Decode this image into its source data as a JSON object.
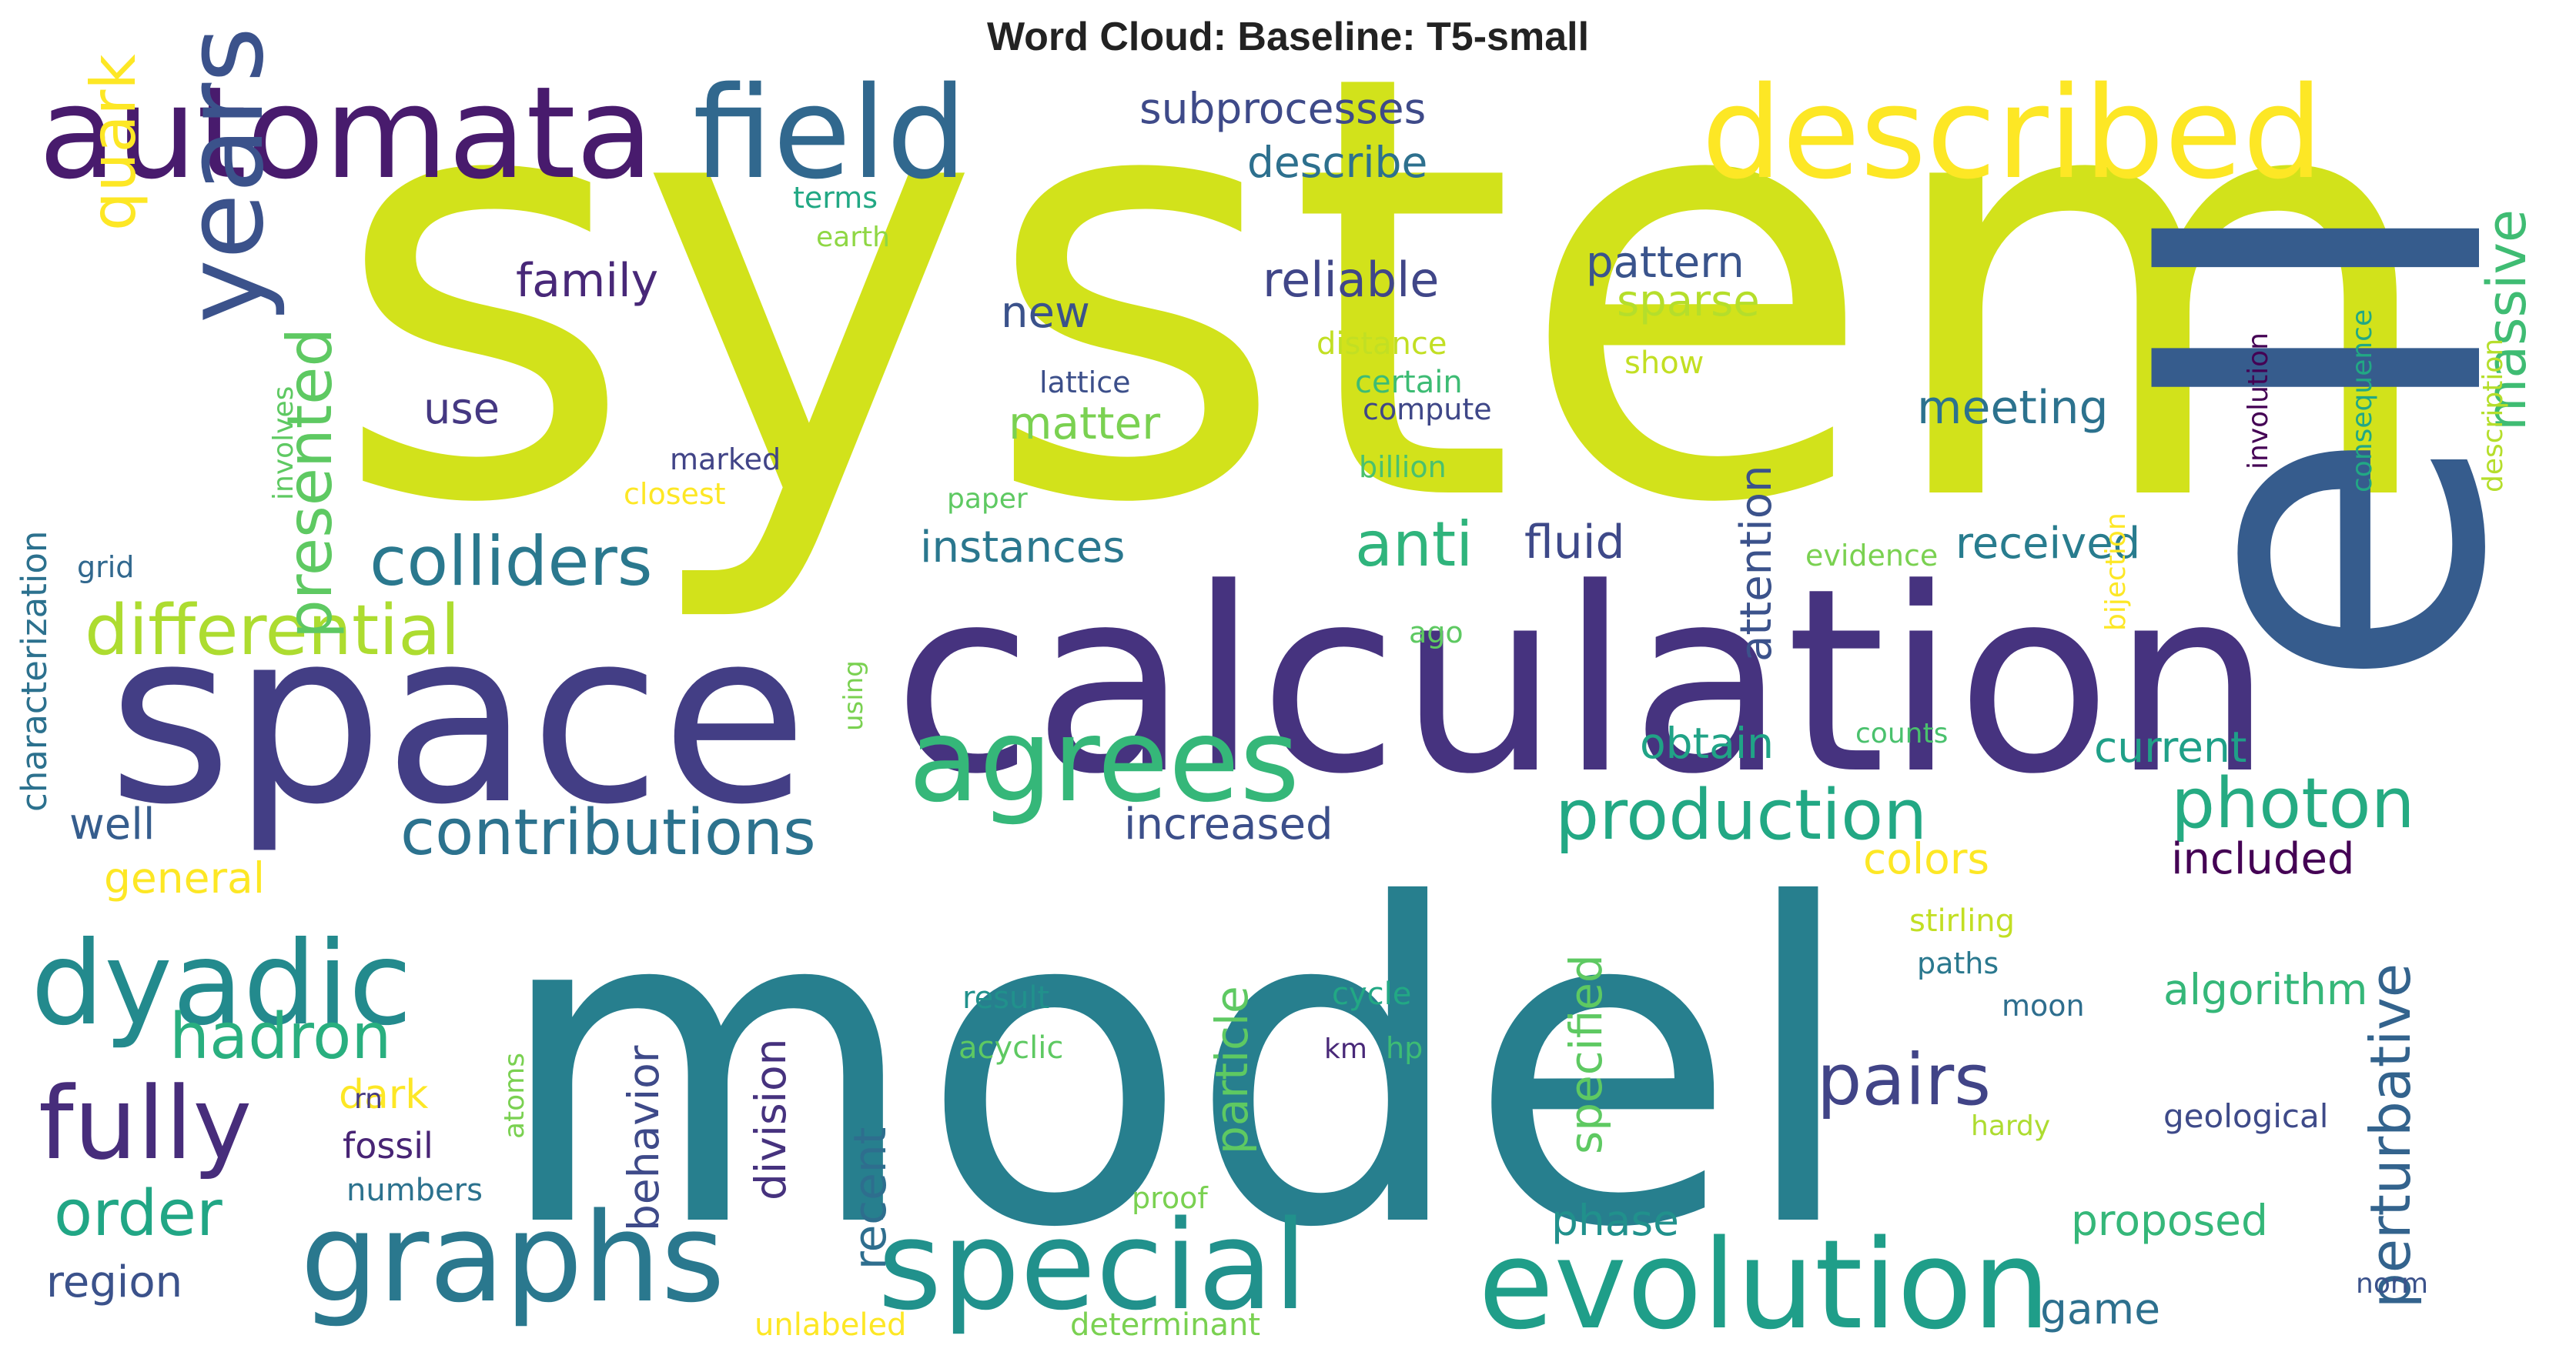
{
  "title": "Word Cloud: Baseline: T5-small",
  "words": [
    {
      "text": "system",
      "color": "#d2e21b"
    },
    {
      "text": "model",
      "color": "#277f8e"
    },
    {
      "text": "calculation",
      "color": "#46337f"
    },
    {
      "text": "space",
      "color": "#433e85"
    },
    {
      "text": "automata",
      "color": "#481b6d"
    },
    {
      "text": "field",
      "color": "#31688e"
    },
    {
      "text": "described",
      "color": "#fde725"
    },
    {
      "text": "ell",
      "color": "#365c8d"
    },
    {
      "text": "years",
      "color": "#3b528b"
    },
    {
      "text": "agrees",
      "color": "#35b779"
    },
    {
      "text": "dyadic",
      "color": "#238a8d"
    },
    {
      "text": "graphs",
      "color": "#2a788e"
    },
    {
      "text": "special",
      "color": "#21918c"
    },
    {
      "text": "evolution",
      "color": "#1f9e89"
    },
    {
      "text": "fully",
      "color": "#472d7b"
    },
    {
      "text": "production",
      "color": "#22a884"
    },
    {
      "text": "photon",
      "color": "#25ab82"
    },
    {
      "text": "contributions",
      "color": "#2c728e"
    },
    {
      "text": "colliders",
      "color": "#2a788e"
    },
    {
      "text": "differential",
      "color": "#addc30"
    },
    {
      "text": "presented",
      "color": "#5ec962"
    },
    {
      "text": "quark",
      "color": "#fde725"
    },
    {
      "text": "massive",
      "color": "#3fbc73"
    },
    {
      "text": "perturbative",
      "color": "#33638d"
    },
    {
      "text": "hadron",
      "color": "#29af7f"
    },
    {
      "text": "pairs",
      "color": "#414487"
    },
    {
      "text": "order",
      "color": "#21a685"
    },
    {
      "text": "anti",
      "color": "#2fb47c"
    },
    {
      "text": "subprocesses",
      "color": "#3e4a89"
    },
    {
      "text": "describe",
      "color": "#2d708e"
    },
    {
      "text": "reliable",
      "color": "#404688"
    },
    {
      "text": "family",
      "color": "#482878"
    },
    {
      "text": "pattern",
      "color": "#3a548c"
    },
    {
      "text": "sparse",
      "color": "#b5de2b"
    },
    {
      "text": "meeting",
      "color": "#2c728e"
    },
    {
      "text": "matter",
      "color": "#7ad151"
    },
    {
      "text": "new",
      "color": "#3b528b"
    },
    {
      "text": "use",
      "color": "#453882"
    },
    {
      "text": "instances",
      "color": "#2a778e"
    },
    {
      "text": "fluid",
      "color": "#3e4989"
    },
    {
      "text": "received",
      "color": "#287c8e"
    },
    {
      "text": "attention",
      "color": "#3b528b"
    },
    {
      "text": "obtain",
      "color": "#20a386"
    },
    {
      "text": "current",
      "color": "#1fa088"
    },
    {
      "text": "increased",
      "color": "#3c4f8a"
    },
    {
      "text": "colors",
      "color": "#fde725"
    },
    {
      "text": "included",
      "color": "#440154"
    },
    {
      "text": "algorithm",
      "color": "#35b779"
    },
    {
      "text": "well",
      "color": "#365d8d"
    },
    {
      "text": "general",
      "color": "#fde725"
    },
    {
      "text": "characterization",
      "color": "#2c718e"
    },
    {
      "text": "particle",
      "color": "#5ec962"
    },
    {
      "text": "behavior",
      "color": "#3e4a89"
    },
    {
      "text": "division",
      "color": "#46327e"
    },
    {
      "text": "specified",
      "color": "#5ec962"
    },
    {
      "text": "recent",
      "color": "#2e6e8e"
    },
    {
      "text": "dark",
      "color": "#fde725"
    },
    {
      "text": "fossil",
      "color": "#482475"
    },
    {
      "text": "numbers",
      "color": "#2c728e"
    },
    {
      "text": "region",
      "color": "#3b528b"
    },
    {
      "text": "phase",
      "color": "#21918c"
    },
    {
      "text": "proposed",
      "color": "#35b779"
    },
    {
      "text": "game",
      "color": "#2d708e"
    },
    {
      "text": "terms",
      "color": "#22a884"
    },
    {
      "text": "earth",
      "color": "#8fd744"
    },
    {
      "text": "distance",
      "color": "#c2df23"
    },
    {
      "text": "certain",
      "color": "#3dbc74"
    },
    {
      "text": "compute",
      "color": "#3f4788"
    },
    {
      "text": "lattice",
      "color": "#3c4f8a"
    },
    {
      "text": "show",
      "color": "#c2df23"
    },
    {
      "text": "involves",
      "color": "#5ec962"
    },
    {
      "text": "marked",
      "color": "#414487"
    },
    {
      "text": "closest",
      "color": "#fde725"
    },
    {
      "text": "paper",
      "color": "#5ec962"
    },
    {
      "text": "billion",
      "color": "#4ac16d"
    },
    {
      "text": "grid",
      "color": "#31688e"
    },
    {
      "text": "evidence",
      "color": "#7ad151"
    },
    {
      "text": "ago",
      "color": "#5ec962"
    },
    {
      "text": "using",
      "color": "#7ad151"
    },
    {
      "text": "counts",
      "color": "#4ac16d"
    },
    {
      "text": "bijection",
      "color": "#fde725"
    },
    {
      "text": "involution",
      "color": "#440154"
    },
    {
      "text": "consequence",
      "color": "#22a884"
    },
    {
      "text": "description",
      "color": "#b5de2b"
    },
    {
      "text": "stirling",
      "color": "#c2df23"
    },
    {
      "text": "paths",
      "color": "#2a788e"
    },
    {
      "text": "moon",
      "color": "#2e6e8e"
    },
    {
      "text": "result",
      "color": "#21918c"
    },
    {
      "text": "cycle",
      "color": "#22a884"
    },
    {
      "text": "acyclic",
      "color": "#5ec962"
    },
    {
      "text": "km",
      "color": "#482878"
    },
    {
      "text": "hp",
      "color": "#3dbc74"
    },
    {
      "text": "rn",
      "color": "#443983"
    },
    {
      "text": "atoms",
      "color": "#7ad151"
    },
    {
      "text": "proof",
      "color": "#7ad151"
    },
    {
      "text": "hardy",
      "color": "#addc30"
    },
    {
      "text": "geological",
      "color": "#3e4a89"
    },
    {
      "text": "norm",
      "color": "#3b528b"
    },
    {
      "text": "unlabeled",
      "color": "#fde725"
    },
    {
      "text": "determinant",
      "color": "#7ad151"
    }
  ]
}
